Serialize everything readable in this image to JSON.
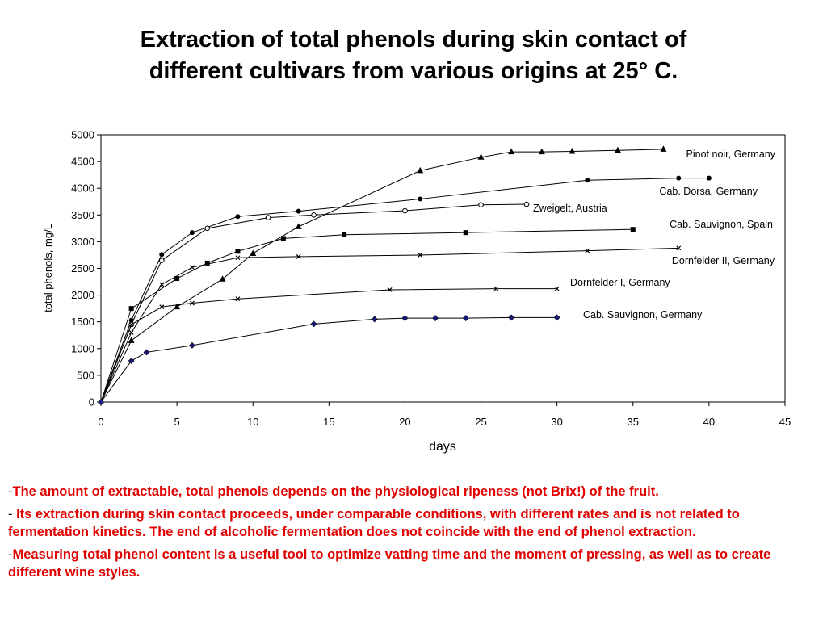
{
  "title": {
    "line1": "Extraction of total phenols during skin contact of",
    "line2": "different cultivars from various origins at 25° C."
  },
  "chart_data": {
    "type": "line",
    "xlabel": "days",
    "ylabel": "total phenols, mg/L",
    "xlim": [
      0,
      45
    ],
    "ylim": [
      0,
      5000
    ],
    "x_ticks": [
      0,
      5,
      10,
      15,
      20,
      25,
      30,
      35,
      40,
      45
    ],
    "y_ticks": [
      0,
      500,
      1000,
      1500,
      2000,
      2500,
      3000,
      3500,
      4000,
      4500,
      5000
    ],
    "grid": false,
    "legend": "inline labels at right end of each series",
    "series": [
      {
        "name": "Pinot noir, Germany",
        "marker": "triangle",
        "x": [
          0,
          2,
          5,
          8,
          10,
          13,
          21,
          25,
          27,
          29,
          31,
          34,
          37
        ],
        "y": [
          0,
          1150,
          1780,
          2300,
          2780,
          3280,
          4330,
          4580,
          4680,
          4680,
          4690,
          4710,
          4730
        ]
      },
      {
        "name": "Cab. Dorsa, Germany",
        "marker": "circle-filled",
        "x": [
          0,
          2,
          4,
          6,
          9,
          13,
          21,
          32,
          38,
          40
        ],
        "y": [
          0,
          1530,
          2760,
          3170,
          3470,
          3570,
          3800,
          4150,
          4190,
          4190
        ]
      },
      {
        "name": "Zweigelt, Austria",
        "marker": "circle-open",
        "x": [
          0,
          2,
          4,
          7,
          11,
          14,
          20,
          25,
          28
        ],
        "y": [
          0,
          1450,
          2650,
          3250,
          3450,
          3500,
          3580,
          3690,
          3700
        ]
      },
      {
        "name": "Cab. Sauvignon, Spain",
        "marker": "square",
        "x": [
          0,
          2,
          5,
          7,
          9,
          12,
          16,
          24,
          35
        ],
        "y": [
          0,
          1750,
          2310,
          2600,
          2820,
          3060,
          3130,
          3170,
          3230
        ]
      },
      {
        "name": "Dornfelder II, Germany",
        "marker": "x",
        "x": [
          0,
          2,
          4,
          6,
          9,
          13,
          21,
          32,
          38
        ],
        "y": [
          0,
          1300,
          2200,
          2520,
          2700,
          2720,
          2750,
          2830,
          2880
        ]
      },
      {
        "name": "Dornfelder I,  Germany",
        "marker": "x",
        "x": [
          0,
          2,
          4,
          6,
          9,
          19,
          26,
          30
        ],
        "y": [
          0,
          1450,
          1780,
          1850,
          1930,
          2100,
          2120,
          2120
        ]
      },
      {
        "name": "Cab. Sauvignon,  Germany",
        "marker": "diamond",
        "x": [
          0,
          2,
          3,
          6,
          14,
          18,
          20,
          22,
          24,
          27,
          30
        ],
        "y": [
          0,
          770,
          930,
          1060,
          1460,
          1550,
          1570,
          1570,
          1570,
          1580,
          1580
        ]
      }
    ]
  },
  "notes": [
    {
      "prefix": "-",
      "text": "The amount of extractable, total phenols depends on the physiological ripeness (not Brix!) of the fruit."
    },
    {
      "prefix": "- ",
      "text": "Its extraction during skin contact proceeds, under comparable conditions, with different rates and is not related to fermentation kinetics. The end of alcoholic fermentation does not coincide with the end of phenol extraction."
    },
    {
      "prefix": "-",
      "text": "Measuring total phenol content is a useful tool to optimize vatting time and the moment of pressing, as well as to create different wine styles."
    }
  ]
}
